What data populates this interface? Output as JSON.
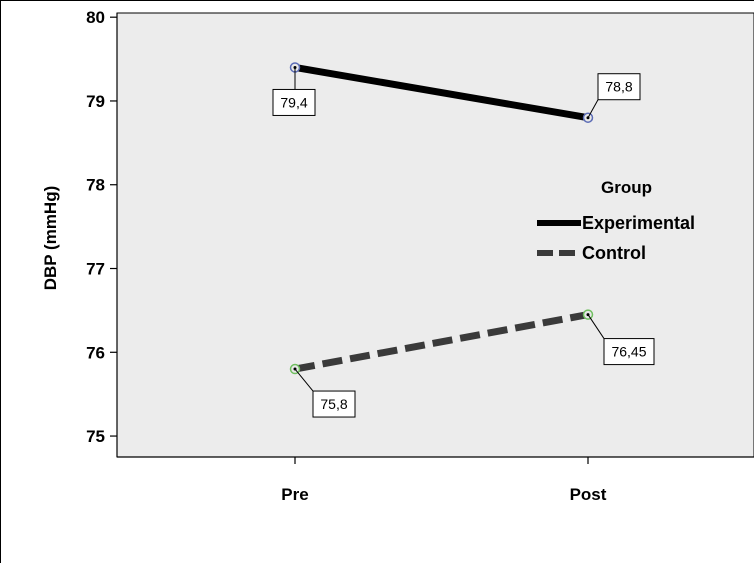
{
  "chart_data": {
    "type": "line",
    "title": "",
    "xlabel": "",
    "ylabel": "DBP (mmHg)",
    "categories": [
      "Pre",
      "Post"
    ],
    "ylim": [
      74.75,
      80.05
    ],
    "yticks": [
      75,
      76,
      77,
      78,
      79,
      80
    ],
    "ytick_labels": [
      "75",
      "76",
      "77",
      "78",
      "79",
      "80"
    ],
    "grid": false,
    "plot_background": "#ececec",
    "legend": {
      "title": "Group",
      "placement": "right"
    },
    "series": [
      {
        "name": "Experimental",
        "values": [
          79.4,
          78.8
        ],
        "labels": [
          "79,4",
          "78,8"
        ],
        "color": "#000000",
        "marker_color": "#5b6bb5",
        "dash": "solid"
      },
      {
        "name": "Control",
        "values": [
          75.8,
          76.45
        ],
        "labels": [
          "75,8",
          "76,45"
        ],
        "color": "#3a3a3a",
        "marker_color": "#6fbf5f",
        "dash": "dashed"
      }
    ]
  }
}
